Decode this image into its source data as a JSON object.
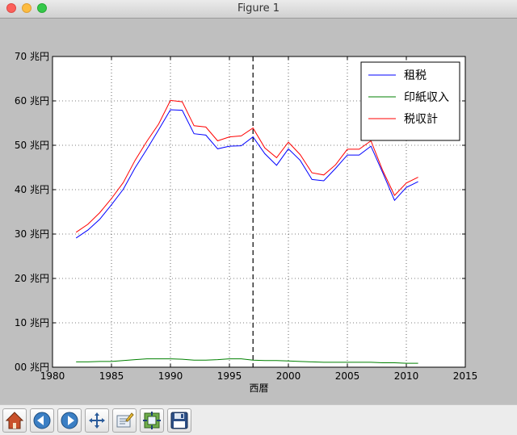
{
  "window": {
    "title": "Figure 1"
  },
  "chart_data": {
    "type": "line",
    "xlabel": "西暦",
    "ylabel": "",
    "xlim": [
      1980,
      2015
    ],
    "ylim": [
      0,
      70
    ],
    "xticks": [
      "1980",
      "1985",
      "1990",
      "1995",
      "2000",
      "2005",
      "2010",
      "2015"
    ],
    "yticks": [
      "00 兆円",
      "10 兆円",
      "20 兆円",
      "30 兆円",
      "40 兆円",
      "50 兆円",
      "60 兆円",
      "70 兆円"
    ],
    "grid": true,
    "legend_position": "top-right",
    "vline_x": 1997,
    "x": [
      1982,
      1983,
      1984,
      1985,
      1986,
      1987,
      1988,
      1989,
      1990,
      1991,
      1992,
      1993,
      1994,
      1995,
      1996,
      1997,
      1998,
      1999,
      2000,
      2001,
      2002,
      2003,
      2004,
      2005,
      2006,
      2007,
      2008,
      2009,
      2010,
      2011
    ],
    "series": [
      {
        "name": "租税",
        "color": "#0000ff",
        "values": [
          29.1,
          30.9,
          33.3,
          36.6,
          40.1,
          44.9,
          49.1,
          53.5,
          58.0,
          57.9,
          52.6,
          52.3,
          49.2,
          49.8,
          49.9,
          51.9,
          48.1,
          45.5,
          49.2,
          46.6,
          42.3,
          42.0,
          44.8,
          47.8,
          47.8,
          49.8,
          43.8,
          37.6,
          40.5,
          41.8
        ]
      },
      {
        "name": "印紙収入",
        "color": "#008000",
        "values": [
          1.2,
          1.2,
          1.3,
          1.3,
          1.5,
          1.7,
          1.9,
          1.9,
          1.9,
          1.8,
          1.6,
          1.6,
          1.7,
          1.9,
          1.9,
          1.6,
          1.5,
          1.5,
          1.4,
          1.3,
          1.2,
          1.1,
          1.1,
          1.1,
          1.1,
          1.1,
          1.0,
          1.0,
          0.9,
          0.9
        ]
      },
      {
        "name": "税収計",
        "color": "#ff0000",
        "values": [
          30.4,
          32.2,
          34.8,
          38.0,
          41.6,
          46.6,
          50.9,
          54.8,
          60.1,
          59.8,
          54.4,
          54.1,
          51.0,
          51.9,
          52.1,
          53.9,
          49.4,
          47.2,
          50.7,
          47.9,
          43.8,
          43.3,
          45.6,
          49.1,
          49.1,
          51.0,
          44.3,
          38.7,
          41.5,
          42.8
        ]
      }
    ]
  },
  "toolbar": {
    "buttons": [
      {
        "name": "home-button",
        "icon": "home-icon"
      },
      {
        "name": "back-button",
        "icon": "back-arrow-icon"
      },
      {
        "name": "forward-button",
        "icon": "forward-arrow-icon"
      },
      {
        "name": "pan-button",
        "icon": "move-icon"
      },
      {
        "name": "zoom-button",
        "icon": "zoom-rect-icon"
      },
      {
        "name": "subplots-button",
        "icon": "subplots-icon"
      },
      {
        "name": "save-button",
        "icon": "floppy-icon"
      }
    ]
  }
}
